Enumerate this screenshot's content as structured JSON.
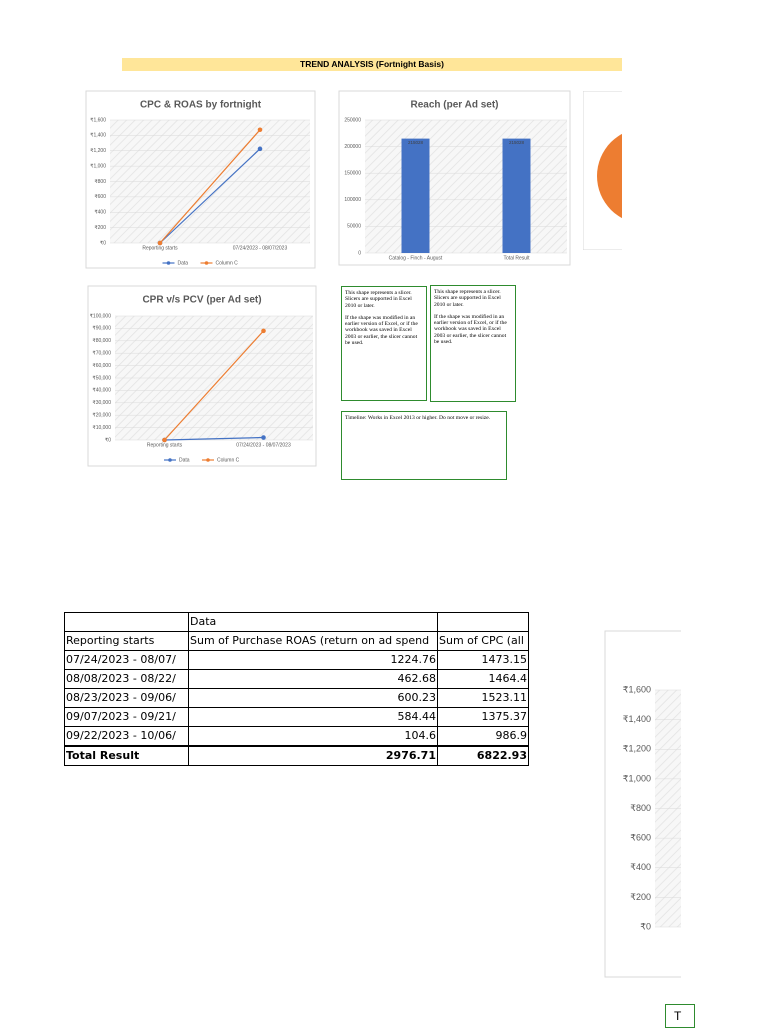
{
  "header": {
    "title": "TREND ANALYSIS (Fortnight Basis)"
  },
  "chart_data": [
    {
      "type": "line",
      "title": "CPC & ROAS by fortnight",
      "categories": [
        "Reporting starts",
        "07/24/2023 - 08/07/2023"
      ],
      "series": [
        {
          "name": "Data",
          "color": "#4472c4",
          "values": [
            0,
            1224.76
          ]
        },
        {
          "name": "Column C",
          "color": "#ed7d31",
          "values": [
            0,
            1473.15
          ]
        }
      ],
      "ylim": [
        0,
        1600
      ],
      "yticks": [
        {
          "value": 0,
          "label": "₹0"
        },
        {
          "value": 200,
          "label": "₹200"
        },
        {
          "value": 400,
          "label": "₹400"
        },
        {
          "value": 600,
          "label": "₹600"
        },
        {
          "value": 800,
          "label": "₹800"
        },
        {
          "value": 1000,
          "label": "₹1,000"
        },
        {
          "value": 1200,
          "label": "₹1,200"
        },
        {
          "value": 1400,
          "label": "₹1,400"
        },
        {
          "value": 1600,
          "label": "₹1,600"
        }
      ],
      "grid": true,
      "legend": "bottom"
    },
    {
      "type": "bar",
      "title": "Reach (per Ad set)",
      "categories": [
        "Catalog - Finch - August",
        "Total Result"
      ],
      "values": [
        215028,
        215028
      ],
      "color": "#4472c4",
      "ylim": [
        0,
        250000
      ],
      "yticks": [
        0,
        50000,
        100000,
        150000,
        200000,
        250000
      ],
      "grid": true
    },
    {
      "type": "line",
      "title": "CPR v/s PCV (per Ad set)",
      "categories": [
        "Reporting starts",
        "07/24/2023 - 08/07/2023"
      ],
      "series": [
        {
          "name": "Data",
          "color": "#4472c4",
          "values": [
            0,
            2000
          ]
        },
        {
          "name": "Column C",
          "color": "#ed7d31",
          "values": [
            0,
            88000
          ]
        }
      ],
      "ylim": [
        0,
        100000
      ],
      "yticks": [
        {
          "value": 0,
          "label": "₹0"
        },
        {
          "value": 10000,
          "label": "₹10,000"
        },
        {
          "value": 20000,
          "label": "₹20,000"
        },
        {
          "value": 30000,
          "label": "₹30,000"
        },
        {
          "value": 40000,
          "label": "₹40,000"
        },
        {
          "value": 50000,
          "label": "₹50,000"
        },
        {
          "value": 60000,
          "label": "₹60,000"
        },
        {
          "value": 70000,
          "label": "₹70,000"
        },
        {
          "value": 80000,
          "label": "₹80,000"
        },
        {
          "value": 90000,
          "label": "₹90,000"
        },
        {
          "value": 100000,
          "label": "₹100,000"
        }
      ],
      "grid": true,
      "legend": "bottom"
    },
    {
      "type": "line",
      "ylim": [
        0,
        1600
      ],
      "yticks": [
        {
          "value": 0,
          "label": "₹0"
        },
        {
          "value": 200,
          "label": "₹200"
        },
        {
          "value": 400,
          "label": "₹400"
        },
        {
          "value": 600,
          "label": "₹600"
        },
        {
          "value": 800,
          "label": "₹800"
        },
        {
          "value": 1000,
          "label": "₹1,000"
        },
        {
          "value": 1200,
          "label": "₹1,200"
        },
        {
          "value": 1400,
          "label": "₹1,400"
        },
        {
          "value": 1600,
          "label": "₹1,600"
        }
      ],
      "grid": true
    }
  ],
  "slicers": [
    {
      "paragraphs": [
        "This shape represents a slicer. Slicers are supported in Excel 2010 or later.",
        "If the shape was modified in an earlier version of Excel, or if the workbook was saved in Excel 2003 or earlier, the slicer cannot be used."
      ]
    },
    {
      "paragraphs": [
        "This shape represents a slicer. Slicers are supported in Excel 2010 or later.",
        "If the shape was modified in an earlier version of Excel, or if the workbook was saved in Excel 2003 or earlier, the slicer cannot be used."
      ]
    }
  ],
  "timeline": {
    "text": "Timeline: Works in Excel 2013 or higher. Do not move or resize."
  },
  "table": {
    "rows": [
      [
        "",
        "Data",
        ""
      ],
      [
        "Reporting starts",
        "Sum of Purchase ROAS (return on ad spend",
        "Sum of CPC (all"
      ],
      [
        "07/24/2023 - 08/07/",
        "1224.76",
        "1473.15"
      ],
      [
        "08/08/2023 - 08/22/",
        "462.68",
        "1464.4"
      ],
      [
        "08/23/2023 - 09/06/",
        "600.23",
        "1523.11"
      ],
      [
        "09/07/2023 - 09/21/",
        "584.44",
        "1375.37"
      ],
      [
        "09/22/2023 - 10/06/",
        "104.6",
        "986.9"
      ],
      [
        "Total Result",
        "2976.71",
        "6822.93"
      ]
    ]
  },
  "fragment": {
    "text": "T"
  }
}
